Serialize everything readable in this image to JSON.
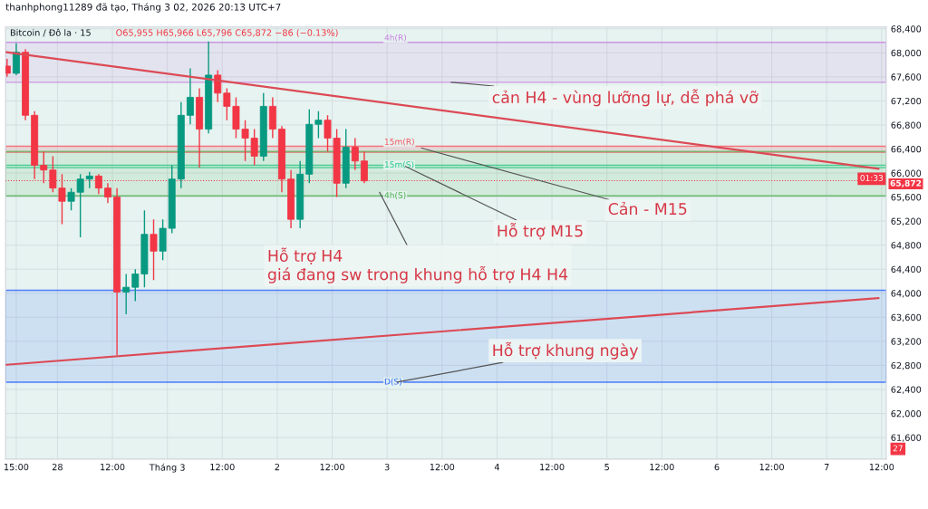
{
  "chart_data": {
    "type": "candlestick",
    "title": "Bitcoin / Đô la · 15",
    "subtitle": "O65,955 H65,966 L65,796 C65,872 −86 (−0.13%)",
    "x": [
      "2026-02-27T13:00",
      "2026-02-27T15:00",
      "2026-02-27T17:00",
      "2026-02-27T19:00",
      "2026-02-27T21:00",
      "2026-02-27T23:00",
      "2026-02-28T01:00",
      "2026-02-28T03:00",
      "2026-02-28T05:00",
      "2026-02-28T07:00",
      "2026-02-28T09:00",
      "2026-02-28T11:00",
      "2026-02-28T13:00",
      "2026-02-28T15:00",
      "2026-02-28T17:00",
      "2026-02-28T19:00",
      "2026-02-28T21:00",
      "2026-02-28T23:00",
      "2026-03-01T01:00",
      "2026-03-01T03:00",
      "2026-03-01T05:00",
      "2026-03-01T07:00",
      "2026-03-01T09:00",
      "2026-03-01T11:00",
      "2026-03-01T13:00",
      "2026-03-01T15:00",
      "2026-03-01T17:00",
      "2026-03-01T19:00",
      "2026-03-01T21:00",
      "2026-03-01T23:00",
      "2026-03-02T01:00",
      "2026-03-02T03:00",
      "2026-03-02T05:00",
      "2026-03-02T07:00",
      "2026-03-02T09:00",
      "2026-03-02T11:00",
      "2026-03-02T13:00",
      "2026-03-02T15:00",
      "2026-03-02T17:00",
      "2026-03-02T19:00"
    ],
    "ohlc": [
      [
        67780,
        67900,
        67600,
        67660
      ],
      [
        67660,
        68160,
        67630,
        68010
      ],
      [
        68010,
        68060,
        66880,
        66960
      ],
      [
        66960,
        67030,
        65900,
        66130
      ],
      [
        66130,
        66360,
        65830,
        66050
      ],
      [
        66050,
        66280,
        65680,
        65750
      ],
      [
        65750,
        65980,
        65150,
        65530
      ],
      [
        65530,
        65750,
        65380,
        65680
      ],
      [
        65680,
        65980,
        64930,
        65900
      ],
      [
        65900,
        66020,
        65750,
        65950
      ],
      [
        65950,
        65980,
        65650,
        65750
      ],
      [
        65750,
        65830,
        65500,
        65600
      ],
      [
        65600,
        65750,
        62970,
        64020
      ],
      [
        64020,
        64320,
        63650,
        64100
      ],
      [
        64100,
        64400,
        63870,
        64320
      ],
      [
        64320,
        65380,
        64100,
        64980
      ],
      [
        64980,
        65230,
        64220,
        64700
      ],
      [
        64700,
        65230,
        64550,
        65080
      ],
      [
        65080,
        66130,
        65000,
        65900
      ],
      [
        65900,
        67180,
        65750,
        66960
      ],
      [
        66960,
        67740,
        66810,
        67260
      ],
      [
        67260,
        67410,
        66090,
        66730
      ],
      [
        66730,
        68190,
        66660,
        67630
      ],
      [
        67630,
        67710,
        67180,
        67330
      ],
      [
        67330,
        67410,
        66880,
        67110
      ],
      [
        67110,
        67260,
        66580,
        66730
      ],
      [
        66730,
        66880,
        66200,
        66580
      ],
      [
        66580,
        66730,
        66130,
        66280
      ],
      [
        66280,
        67330,
        66200,
        67110
      ],
      [
        67110,
        67260,
        66580,
        66730
      ],
      [
        66730,
        66780,
        65680,
        65900
      ],
      [
        65900,
        66050,
        65080,
        65230
      ],
      [
        65230,
        66200,
        65080,
        65980
      ],
      [
        65980,
        67060,
        65830,
        66810
      ],
      [
        66810,
        67030,
        66580,
        66880
      ],
      [
        66880,
        66960,
        66360,
        66580
      ],
      [
        66580,
        66730,
        65600,
        65830
      ],
      [
        65830,
        66730,
        65750,
        66430
      ],
      [
        66430,
        66580,
        66050,
        66200
      ],
      [
        66200,
        66360,
        65830,
        65870
      ]
    ],
    "colors": [
      "#f23645",
      "#089981",
      "#f23645",
      "#f23645",
      "#f23645",
      "#f23645",
      "#f23645",
      "#089981",
      "#089981",
      "#089981",
      "#f23645",
      "#f23645",
      "#f23645",
      "#089981",
      "#089981",
      "#089981",
      "#f23645",
      "#089981",
      "#089981",
      "#089981",
      "#089981",
      "#f23645",
      "#089981",
      "#f23645",
      "#f23645",
      "#f23645",
      "#f23645",
      "#f23645",
      "#089981",
      "#f23645",
      "#f23645",
      "#f23645",
      "#089981",
      "#089981",
      "#089981",
      "#f23645",
      "#f23645",
      "#089981",
      "#f23645",
      "#f23645"
    ],
    "series": [
      {
        "type": "line",
        "color": "#dc4a55",
        "x": [
          "2026-02-27T12:50",
          "2026-03-07T11:20"
        ],
        "values": [
          68010,
          66070
        ]
      },
      {
        "type": "line",
        "color": "#dc4a55",
        "x": [
          "2026-02-27T12:50",
          "2026-03-07T11:20"
        ],
        "values": [
          62810,
          63920
        ]
      }
    ],
    "bands": [
      {
        "axis": "y",
        "from": 67510,
        "to": 68175,
        "label": "4h(R)",
        "color": "#c77fe0"
      },
      {
        "axis": "y",
        "from": 66345,
        "to": 66445,
        "label": "15m(R)",
        "color": "#f7525f"
      },
      {
        "axis": "y",
        "from": 66090,
        "to": 66130,
        "label": "15m(S)",
        "color": "#22c98a"
      },
      {
        "axis": "y",
        "from": 65620,
        "to": 66360,
        "label": "4h(S)",
        "color": "#4caf50"
      },
      {
        "axis": "y",
        "from": 62520,
        "to": 64050,
        "label": "D(S)",
        "color": "#2962ff"
      }
    ],
    "ref_lines": [
      {
        "axis": "y",
        "value": 65872,
        "label": "65,872",
        "color": "#f23645",
        "line_style": "dotted"
      }
    ],
    "annotations": [
      "thanhphong11289 đã tạo, Tháng 3 02, 2026 20:13 UTC+7",
      "01:33",
      "27",
      {
        "text": "cản H4 - vùng lưỡng lự, dễ phá vỡ",
        "x": "2026-03-03T14:00",
        "y": 67510
      },
      {
        "text": "Cản - M15",
        "x": "2026-03-03T07:30",
        "y": 66415
      },
      {
        "text": "Hỗ trợ M15",
        "x": "2026-03-03T04:00",
        "y": 66110
      },
      {
        "text": "Hỗ trợ H4\ngiá đang sw trong khung hỗ trợ H4 H4",
        "x": "2026-03-02T22:20",
        "y": 65680
      },
      {
        "text": "Hỗ trợ khung ngày",
        "x": "2026-03-03T02:10",
        "y": 62520
      }
    ],
    "xlim": [
      "2026-02-27T12:40",
      "2026-03-07T13:00"
    ],
    "xticks": [
      {
        "value": "2026-02-27T15:00",
        "label": "15:00"
      },
      {
        "value": "2026-02-28T00:00",
        "label": "28"
      },
      {
        "value": "2026-02-28T12:00",
        "label": "12:00"
      },
      {
        "value": "2026-03-01T00:00",
        "label": "Tháng 3"
      },
      {
        "value": "2026-03-01T12:00",
        "label": "12:00"
      },
      {
        "value": "2026-03-02T00:00",
        "label": "2"
      },
      {
        "value": "2026-03-02T12:00",
        "label": "12:00"
      },
      {
        "value": "2026-03-03T00:00",
        "label": "3"
      },
      {
        "value": "2026-03-03T12:00",
        "label": "12:00"
      },
      {
        "value": "2026-03-04T00:00",
        "label": "4"
      },
      {
        "value": "2026-03-04T12:00",
        "label": "12:00"
      },
      {
        "value": "2026-03-05T00:00",
        "label": "5"
      },
      {
        "value": "2026-03-05T12:00",
        "label": "12:00"
      },
      {
        "value": "2026-03-06T00:00",
        "label": "6"
      },
      {
        "value": "2026-03-06T12:00",
        "label": "12:00"
      },
      {
        "value": "2026-03-07T00:00",
        "label": "7"
      },
      {
        "value": "2026-03-07T12:00",
        "label": "12:00"
      }
    ],
    "ylim": [
      61240,
      68430
    ],
    "yticks": [
      {
        "value": 61600,
        "label": "61,600"
      },
      {
        "value": 62000,
        "label": "62,000"
      },
      {
        "value": 62400,
        "label": "62,400"
      },
      {
        "value": 62800,
        "label": "62,800"
      },
      {
        "value": 63200,
        "label": "63,200"
      },
      {
        "value": 63600,
        "label": "63,600"
      },
      {
        "value": 64000,
        "label": "64,000"
      },
      {
        "value": 64400,
        "label": "64,400"
      },
      {
        "value": 64800,
        "label": "64,800"
      },
      {
        "value": 65200,
        "label": "65,200"
      },
      {
        "value": 65600,
        "label": "65,600"
      },
      {
        "value": 66000,
        "label": "66,000"
      },
      {
        "value": 66400,
        "label": "66,400"
      },
      {
        "value": 66800,
        "label": "66,800"
      },
      {
        "value": 67200,
        "label": "67,200"
      },
      {
        "value": 67600,
        "label": "67,600"
      },
      {
        "value": 68000,
        "label": "68,000"
      },
      {
        "value": 68400,
        "label": "68,400"
      }
    ],
    "grid": true,
    "legend": false
  }
}
